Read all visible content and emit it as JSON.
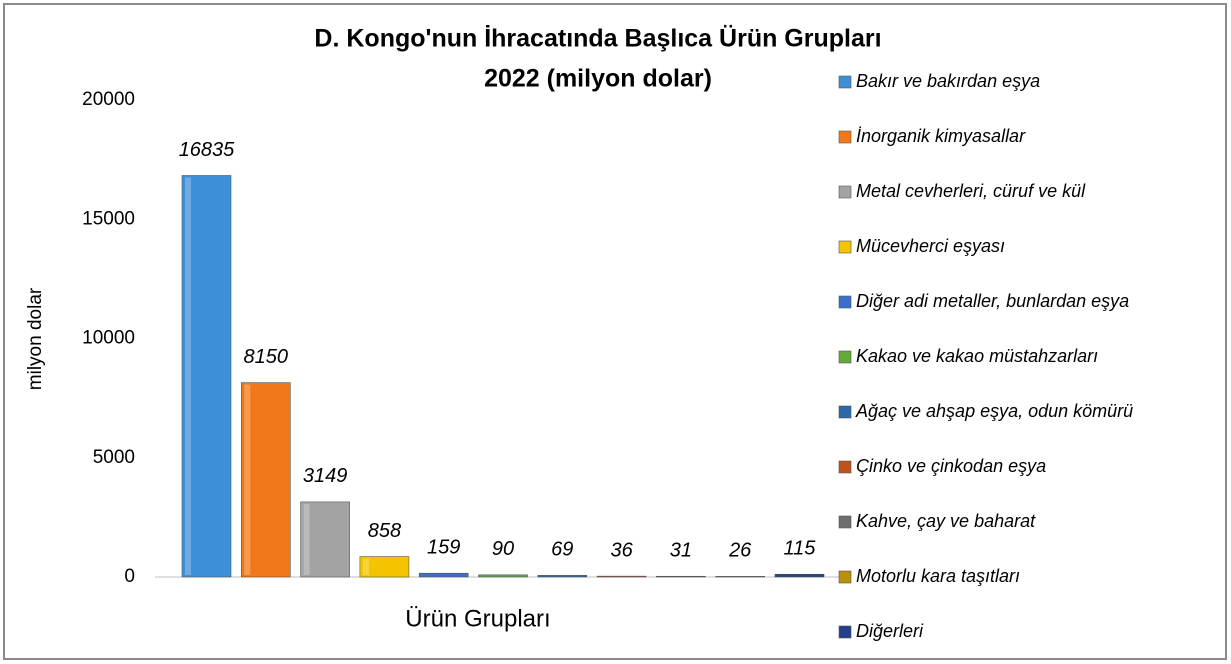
{
  "chart_data": {
    "type": "bar",
    "title": [
      "D. Kongo'nun İhracatında Başlıca Ürün Grupları",
      "2022 (milyon dolar)"
    ],
    "y_label": "milyon dolar",
    "x_label": "Ürün Grupları",
    "ylim": [
      0,
      20000
    ],
    "yticks": [
      0,
      5000,
      10000,
      15000,
      20000
    ],
    "grid": false,
    "legend": "right",
    "series": [
      {
        "name": "Bakır ve bakırdan eşya",
        "color": "#3d8fd8",
        "values": [
          16835
        ]
      },
      {
        "name": "İnorganik kimyasallar",
        "color": "#f07818",
        "values": [
          8150
        ]
      },
      {
        "name": "Metal cevherleri, cüruf ve kül",
        "color": "#a3a3a3",
        "values": [
          3149
        ]
      },
      {
        "name": "Mücevherci eşyası",
        "color": "#f5c400",
        "values": [
          858
        ]
      },
      {
        "name": "Diğer adi metaller, bunlardan eşya",
        "color": "#3a6fcc",
        "values": [
          159
        ]
      },
      {
        "name": "Kakao ve kakao müstahzarları",
        "color": "#62a83a",
        "values": [
          90
        ]
      },
      {
        "name": "Ağaç ve ahşap eşya, odun kömürü",
        "color": "#2a6aa8",
        "values": [
          69
        ]
      },
      {
        "name": "Çinko ve çinkodan eşya",
        "color": "#c2501a",
        "values": [
          36
        ]
      },
      {
        "name": "Kahve, çay ve baharat",
        "color": "#6e6e6e",
        "values": [
          31
        ]
      },
      {
        "name": "Motorlu kara taşıtları",
        "color": "#b8900a",
        "values": [
          26
        ]
      },
      {
        "name": "Diğerleri",
        "color": "#24408c",
        "values": [
          115
        ]
      }
    ]
  }
}
